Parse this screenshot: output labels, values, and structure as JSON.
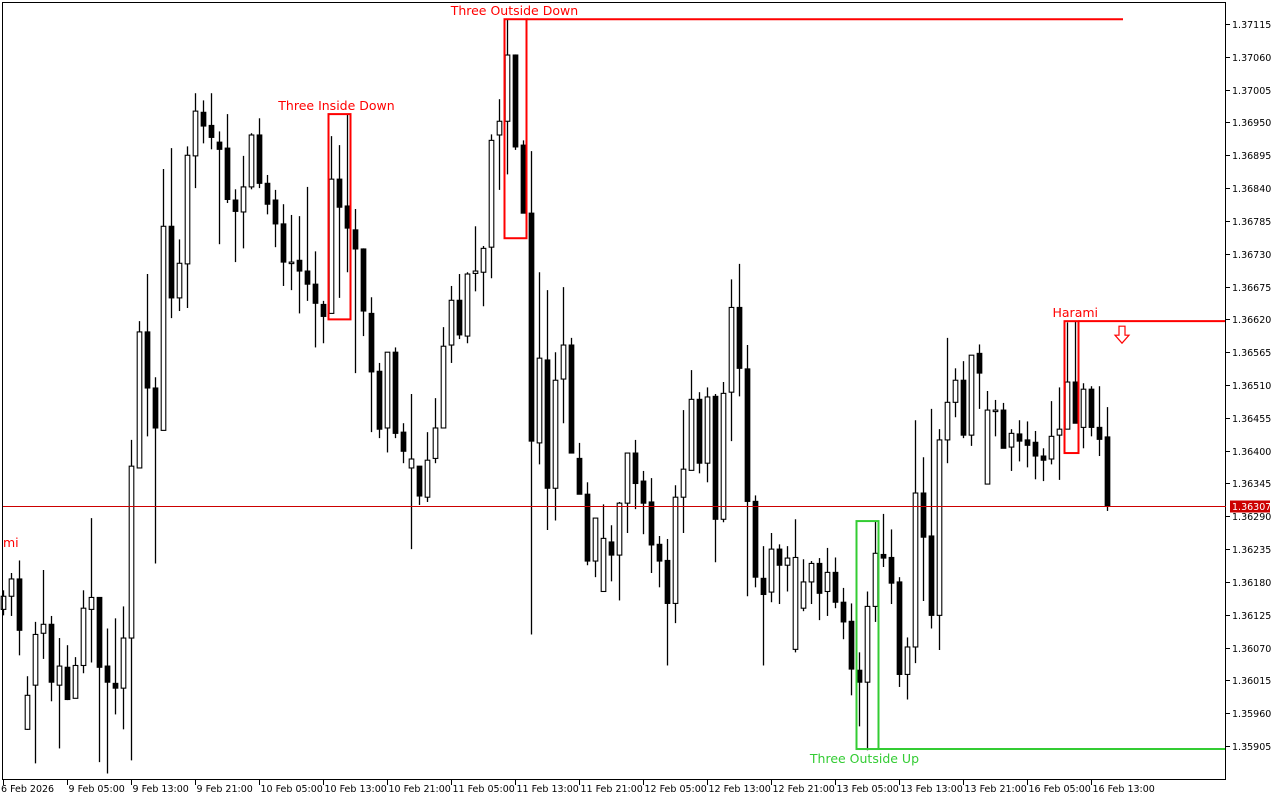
{
  "chart_data": {
    "type": "candlestick",
    "title": "",
    "colors": {
      "background": "#ffffff",
      "bull_body": "#ffffff",
      "bear_body": "#000000",
      "wick": "#000000",
      "bearish_pattern": "#ff0000",
      "bullish_pattern": "#33cc33",
      "price_line": "#cc0000"
    },
    "y_axis": {
      "range": [
        1.35855,
        1.37155
      ],
      "ticks": [
        "1.37115",
        "1.37060",
        "1.37005",
        "1.36950",
        "1.36895",
        "1.36840",
        "1.36785",
        "1.36730",
        "1.36675",
        "1.36620",
        "1.36565",
        "1.36510",
        "1.36455",
        "1.36400",
        "1.36345",
        "1.36290",
        "1.36235",
        "1.36180",
        "1.36125",
        "1.36070",
        "1.36015",
        "1.35960",
        "1.35905"
      ]
    },
    "x_axis": {
      "ticks": [
        {
          "bar": 0,
          "label": "6 Feb 2026"
        },
        {
          "bar": 8,
          "label": "9 Feb 05:00"
        },
        {
          "bar": 16,
          "label": "9 Feb 13:00"
        },
        {
          "bar": 24,
          "label": "9 Feb 21:00"
        },
        {
          "bar": 32,
          "label": "10 Feb 05:00"
        },
        {
          "bar": 40,
          "label": "10 Feb 13:00"
        },
        {
          "bar": 48,
          "label": "10 Feb 21:00"
        },
        {
          "bar": 56,
          "label": "11 Feb 05:00"
        },
        {
          "bar": 64,
          "label": "11 Feb 13:00"
        },
        {
          "bar": 72,
          "label": "11 Feb 21:00"
        },
        {
          "bar": 80,
          "label": "12 Feb 05:00"
        },
        {
          "bar": 88,
          "label": "12 Feb 13:00"
        },
        {
          "bar": 96,
          "label": "12 Feb 21:00"
        },
        {
          "bar": 104,
          "label": "13 Feb 05:00"
        },
        {
          "bar": 112,
          "label": "13 Feb 13:00"
        },
        {
          "bar": 120,
          "label": "13 Feb 21:00"
        },
        {
          "bar": 128,
          "label": "16 Feb 05:00"
        },
        {
          "bar": 136,
          "label": "16 Feb 13:00"
        }
      ]
    },
    "current_price": {
      "value": 1.36307,
      "label": "1.36307"
    },
    "candles_ohlc": [
      [
        1.36134,
        1.36166,
        1.36124,
        1.36156
      ],
      [
        1.36156,
        1.36195,
        1.36123,
        1.36185
      ],
      [
        1.36185,
        1.36216,
        1.36057,
        1.36099
      ],
      [
        1.35933,
        1.36022,
        1.35932,
        1.3599
      ],
      [
        1.36007,
        1.36113,
        1.35876,
        1.36092
      ],
      [
        1.36094,
        1.362,
        1.36051,
        1.36109
      ],
      [
        1.36109,
        1.36123,
        1.3598,
        1.36012
      ],
      [
        1.36007,
        1.36086,
        1.35901,
        1.36039
      ],
      [
        1.36037,
        1.36074,
        1.35982,
        1.35983
      ],
      [
        1.35985,
        1.36054,
        1.35985,
        1.3604
      ],
      [
        1.3604,
        1.36166,
        1.36027,
        1.36136
      ],
      [
        1.36134,
        1.36287,
        1.36045,
        1.36154
      ],
      [
        1.36154,
        1.36154,
        1.35878,
        1.36037
      ],
      [
        1.36039,
        1.36102,
        1.35859,
        1.36012
      ],
      [
        1.3601,
        1.36119,
        1.35958,
        1.36002
      ],
      [
        1.36002,
        1.36139,
        1.35933,
        1.36086
      ],
      [
        1.36086,
        1.36418,
        1.35881,
        1.36374
      ],
      [
        1.36371,
        1.36617,
        1.36371,
        1.36599
      ],
      [
        1.36599,
        1.36696,
        1.36424,
        1.36505
      ],
      [
        1.36505,
        1.36523,
        1.36211,
        1.36438
      ],
      [
        1.36434,
        1.36872,
        1.36434,
        1.36776
      ],
      [
        1.36776,
        1.36907,
        1.36622,
        1.36656
      ],
      [
        1.36656,
        1.36754,
        1.36634,
        1.36714
      ],
      [
        1.36713,
        1.3691,
        1.36639,
        1.36895
      ],
      [
        1.36894,
        1.36999,
        1.3684,
        1.36969
      ],
      [
        1.36967,
        1.36987,
        1.36915,
        1.36944
      ],
      [
        1.36945,
        1.36999,
        1.36905,
        1.36925
      ],
      [
        1.36917,
        1.36935,
        1.36746,
        1.36905
      ],
      [
        1.36907,
        1.36964,
        1.36815,
        1.36821
      ],
      [
        1.3682,
        1.36838,
        1.36716,
        1.36801
      ],
      [
        1.368,
        1.36894,
        1.36739,
        1.36842
      ],
      [
        1.36842,
        1.36932,
        1.36838,
        1.36929
      ],
      [
        1.36929,
        1.36957,
        1.3684,
        1.36848
      ],
      [
        1.36848,
        1.36862,
        1.36796,
        1.36813
      ],
      [
        1.3682,
        1.36837,
        1.36741,
        1.3678
      ],
      [
        1.3678,
        1.36813,
        1.36676,
        1.36716
      ],
      [
        1.36716,
        1.36795,
        1.36669,
        1.36716
      ],
      [
        1.36719,
        1.36793,
        1.3663,
        1.36701
      ],
      [
        1.36701,
        1.36842,
        1.36651,
        1.36679
      ],
      [
        1.36679,
        1.36734,
        1.36573,
        1.36647
      ],
      [
        1.36645,
        1.36651,
        1.3658,
        1.36625
      ],
      [
        1.3663,
        1.36927,
        1.3663,
        1.36855
      ],
      [
        1.36855,
        1.36912,
        1.36656,
        1.36808
      ],
      [
        1.3681,
        1.36964,
        1.36699,
        1.36773
      ],
      [
        1.3677,
        1.36805,
        1.3653,
        1.36738
      ],
      [
        1.36738,
        1.36739,
        1.36592,
        1.36634
      ],
      [
        1.3663,
        1.36657,
        1.36431,
        1.36532
      ],
      [
        1.36533,
        1.36547,
        1.36421,
        1.36436
      ],
      [
        1.36438,
        1.36565,
        1.36397,
        1.36565
      ],
      [
        1.36565,
        1.36573,
        1.36421,
        1.36429
      ],
      [
        1.36431,
        1.36446,
        1.36379,
        1.36399
      ],
      [
        1.36371,
        1.36495,
        1.36235,
        1.36386
      ],
      [
        1.36374,
        1.36374,
        1.36309,
        1.36324
      ],
      [
        1.36322,
        1.36431,
        1.36314,
        1.36384
      ],
      [
        1.36387,
        1.36488,
        1.36379,
        1.36438
      ],
      [
        1.36438,
        1.36607,
        1.36438,
        1.36575
      ],
      [
        1.36577,
        1.36676,
        1.36547,
        1.36652
      ],
      [
        1.36652,
        1.36696,
        1.36587,
        1.36594
      ],
      [
        1.36592,
        1.36699,
        1.3658,
        1.36696
      ],
      [
        1.36697,
        1.36776,
        1.36667,
        1.36701
      ],
      [
        1.36699,
        1.36743,
        1.36642,
        1.36739
      ],
      [
        1.36741,
        1.3693,
        1.36689,
        1.3692
      ],
      [
        1.36929,
        1.36989,
        1.36837,
        1.36952
      ],
      [
        1.36952,
        1.37123,
        1.36863,
        1.37063
      ],
      [
        1.37063,
        1.37064,
        1.36904,
        1.36909
      ],
      [
        1.36912,
        1.3692,
        1.36798,
        1.36798
      ],
      [
        1.36798,
        1.36902,
        1.36092,
        1.36416
      ],
      [
        1.36413,
        1.36699,
        1.36377,
        1.36555
      ],
      [
        1.36552,
        1.36669,
        1.36267,
        1.36337
      ],
      [
        1.36337,
        1.36565,
        1.36283,
        1.36518
      ],
      [
        1.3652,
        1.36674,
        1.36446,
        1.36577
      ],
      [
        1.36577,
        1.36589,
        1.36396,
        1.36396
      ],
      [
        1.36387,
        1.36413,
        1.36327,
        1.36327
      ],
      [
        1.36327,
        1.36347,
        1.36208,
        1.36215
      ],
      [
        1.36215,
        1.36287,
        1.36188,
        1.36287
      ],
      [
        1.36164,
        1.3631,
        1.36164,
        1.36253
      ],
      [
        1.36247,
        1.36275,
        1.36181,
        1.36225
      ],
      [
        1.36225,
        1.36314,
        1.36149,
        1.36312
      ],
      [
        1.36312,
        1.36396,
        1.36262,
        1.36396
      ],
      [
        1.36396,
        1.36418,
        1.36302,
        1.36345
      ],
      [
        1.36349,
        1.36366,
        1.3626,
        1.36312
      ],
      [
        1.36314,
        1.36354,
        1.36195,
        1.36242
      ],
      [
        1.36243,
        1.36257,
        1.36171,
        1.36215
      ],
      [
        1.36216,
        1.36252,
        1.3604,
        1.36144
      ],
      [
        1.36144,
        1.36342,
        1.36111,
        1.36322
      ],
      [
        1.36322,
        1.36468,
        1.36262,
        1.36369
      ],
      [
        1.36367,
        1.36535,
        1.36367,
        1.36486
      ],
      [
        1.36486,
        1.36498,
        1.36362,
        1.36379
      ],
      [
        1.36379,
        1.36506,
        1.36347,
        1.3649
      ],
      [
        1.36491,
        1.36495,
        1.36213,
        1.36285
      ],
      [
        1.36285,
        1.36515,
        1.3628,
        1.36496
      ],
      [
        1.36498,
        1.36687,
        1.36416,
        1.3664
      ],
      [
        1.3664,
        1.36713,
        1.36491,
        1.36538
      ],
      [
        1.36537,
        1.36577,
        1.36156,
        1.36315
      ],
      [
        1.36315,
        1.36325,
        1.36171,
        1.36188
      ],
      [
        1.36186,
        1.3624,
        1.3604,
        1.36159
      ],
      [
        1.36163,
        1.36262,
        1.36146,
        1.36235
      ],
      [
        1.36235,
        1.36243,
        1.36143,
        1.36208
      ],
      [
        1.36208,
        1.3624,
        1.36164,
        1.3622
      ],
      [
        1.36067,
        1.36285,
        1.36062,
        1.36221
      ],
      [
        1.36136,
        1.36218,
        1.36131,
        1.3618
      ],
      [
        1.3618,
        1.36215,
        1.36143,
        1.36211
      ],
      [
        1.36211,
        1.3622,
        1.36116,
        1.36161
      ],
      [
        1.36164,
        1.36237,
        1.36123,
        1.36196
      ],
      [
        1.36196,
        1.36221,
        1.36136,
        1.36146
      ],
      [
        1.36146,
        1.3617,
        1.36084,
        1.36113
      ],
      [
        1.36114,
        1.36144,
        1.3599,
        1.36034
      ],
      [
        1.36032,
        1.36062,
        1.35938,
        1.36012
      ],
      [
        1.36012,
        1.36164,
        1.35898,
        1.36139
      ],
      [
        1.36139,
        1.36282,
        1.36113,
        1.36228
      ],
      [
        1.36226,
        1.36294,
        1.36205,
        1.3622
      ],
      [
        1.36221,
        1.36268,
        1.36143,
        1.36178
      ],
      [
        1.3618,
        1.36188,
        1.36004,
        1.36025
      ],
      [
        1.36025,
        1.36087,
        1.35983,
        1.36071
      ],
      [
        1.36071,
        1.36451,
        1.36044,
        1.36329
      ],
      [
        1.36329,
        1.36389,
        1.36148,
        1.36255
      ],
      [
        1.36257,
        1.3647,
        1.36102,
        1.36124
      ],
      [
        1.36124,
        1.36436,
        1.36066,
        1.36418
      ],
      [
        1.36418,
        1.36589,
        1.36379,
        1.36481
      ],
      [
        1.36481,
        1.36538,
        1.36456,
        1.36518
      ],
      [
        1.36518,
        1.3655,
        1.36421,
        1.36426
      ],
      [
        1.36426,
        1.3656,
        1.36408,
        1.3656
      ],
      [
        1.36563,
        1.36578,
        1.3647,
        1.3653
      ],
      [
        1.36344,
        1.365,
        1.36344,
        1.36468
      ],
      [
        1.36468,
        1.36485,
        1.36424,
        1.36468
      ],
      [
        1.36468,
        1.3648,
        1.36404,
        1.36404
      ],
      [
        1.36406,
        1.36436,
        1.36366,
        1.36429
      ],
      [
        1.36428,
        1.36451,
        1.36382,
        1.36416
      ],
      [
        1.36418,
        1.36449,
        1.36372,
        1.36409
      ],
      [
        1.36414,
        1.36433,
        1.36352,
        1.36391
      ],
      [
        1.36391,
        1.36404,
        1.36349,
        1.36384
      ],
      [
        1.36386,
        1.36483,
        1.36377,
        1.36424
      ],
      [
        1.36426,
        1.36506,
        1.36351,
        1.36436
      ],
      [
        1.36436,
        1.36615,
        1.36436,
        1.36515
      ],
      [
        1.36515,
        1.36617,
        1.36446,
        1.36446
      ],
      [
        1.36439,
        1.36513,
        1.36404,
        1.36503
      ],
      [
        1.36503,
        1.36508,
        1.36424,
        1.36439
      ],
      [
        1.36439,
        1.36508,
        1.36391,
        1.36419
      ],
      [
        1.36423,
        1.36473,
        1.36299,
        1.36307
      ]
    ],
    "patterns": [
      {
        "label": "Three Inside Down",
        "bars": [
          41,
          43
        ],
        "top": 1.36964,
        "bottom": 1.3662,
        "bias": "bearish",
        "extend_line": false
      },
      {
        "label": "Three Outside Down",
        "bars": [
          63,
          65
        ],
        "top": 1.37123,
        "bottom": 1.36756,
        "bias": "bearish",
        "extend_line": "top",
        "line_end_bar": 140
      },
      {
        "label": "Harami",
        "bars": [
          133,
          134
        ],
        "top": 1.36617,
        "bottom": 1.36396,
        "bias": "bearish",
        "extend_line": "top",
        "line_end_bar": "edge",
        "arrow": "down-arrow-icon"
      },
      {
        "label": "Three Outside Up",
        "bars": [
          107,
          109
        ],
        "top": 1.36282,
        "bottom": 1.359,
        "bias": "bullish",
        "extend_line": "bottom",
        "line_end_bar": "edge"
      }
    ],
    "offscreen_label": {
      "text": "mi",
      "price": 1.3624
    }
  }
}
